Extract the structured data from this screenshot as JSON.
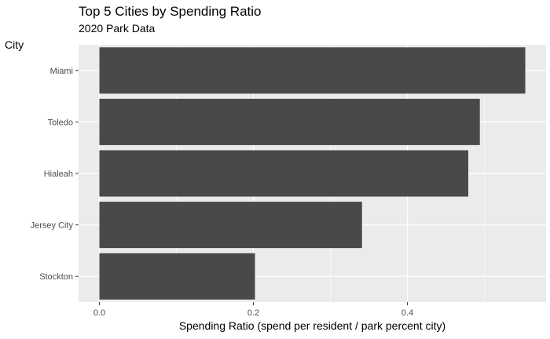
{
  "chart_data": {
    "type": "bar",
    "orientation": "horizontal",
    "title": "Top 5 Cities by Spending Ratio",
    "subtitle": "2020 Park Data",
    "xlabel": "Spending Ratio (spend per resident / park percent city)",
    "ylabel": "City",
    "categories": [
      "Miami",
      "Toledo",
      "Hialeah",
      "Jersey City",
      "Stockton"
    ],
    "values": [
      0.553,
      0.494,
      0.479,
      0.341,
      0.202
    ],
    "xlim": [
      -0.027,
      0.58
    ],
    "xticks": [
      0.0,
      0.2,
      0.4
    ],
    "xtick_labels": [
      "0.0",
      "0.2",
      "0.4"
    ],
    "grid": true,
    "colors": {
      "bar": "#494949",
      "panel": "#ebebeb",
      "grid": "#ffffff"
    }
  }
}
